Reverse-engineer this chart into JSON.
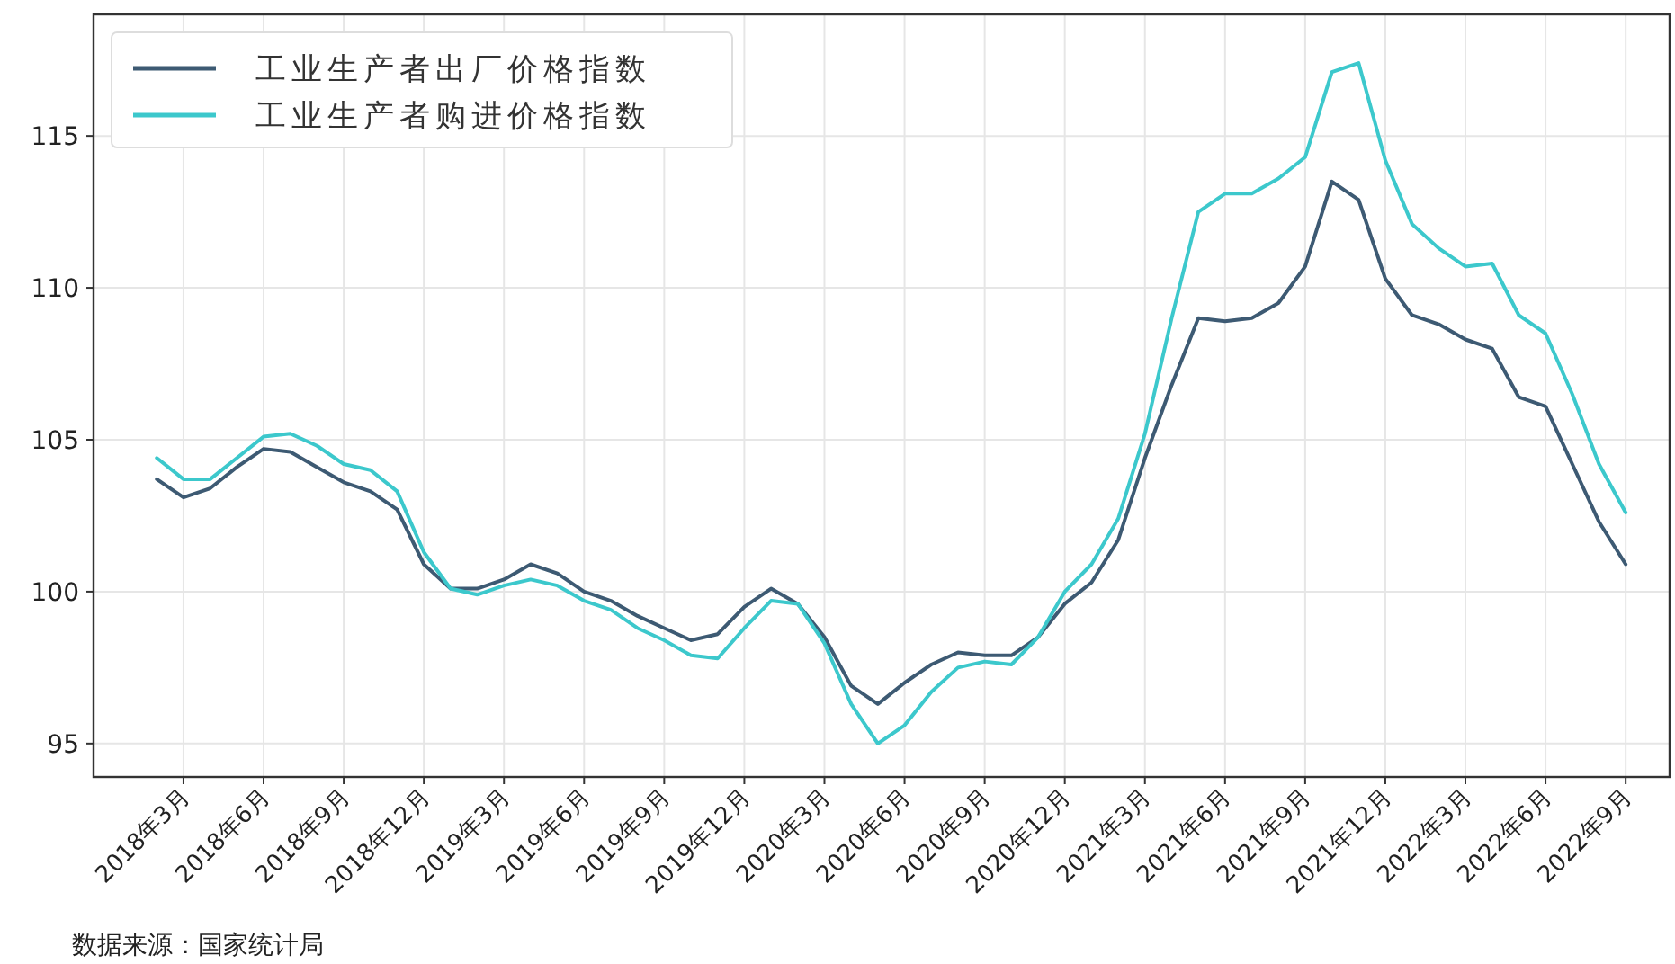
{
  "chart_data": {
    "type": "line",
    "x": [
      "2018-02",
      "2018-03",
      "2018-04",
      "2018-05",
      "2018-06",
      "2018-07",
      "2018-08",
      "2018-09",
      "2018-10",
      "2018-11",
      "2018-12",
      "2019-01",
      "2019-02",
      "2019-03",
      "2019-04",
      "2019-05",
      "2019-06",
      "2019-07",
      "2019-08",
      "2019-09",
      "2019-10",
      "2019-11",
      "2019-12",
      "2020-01",
      "2020-02",
      "2020-03",
      "2020-04",
      "2020-05",
      "2020-06",
      "2020-07",
      "2020-08",
      "2020-09",
      "2020-10",
      "2020-11",
      "2020-12",
      "2021-01",
      "2021-02",
      "2021-03",
      "2021-04",
      "2021-05",
      "2021-06",
      "2021-07",
      "2021-08",
      "2021-09",
      "2021-10",
      "2021-11",
      "2021-12",
      "2022-01",
      "2022-02",
      "2022-03",
      "2022-04",
      "2022-05",
      "2022-06",
      "2022-07",
      "2022-08",
      "2022-09"
    ],
    "series": [
      {
        "name": "工业生产者出厂价格指数",
        "color": "#3d5a73",
        "values": [
          103.7,
          103.1,
          103.4,
          104.1,
          104.7,
          104.6,
          104.1,
          103.6,
          103.3,
          102.7,
          100.9,
          100.1,
          100.1,
          100.4,
          100.9,
          100.6,
          100.0,
          99.7,
          99.2,
          98.8,
          98.4,
          98.6,
          99.5,
          100.1,
          99.6,
          98.5,
          96.9,
          96.3,
          97.0,
          97.6,
          98.0,
          97.9,
          97.9,
          98.5,
          99.6,
          100.3,
          101.7,
          104.4,
          106.8,
          109.0,
          108.9,
          109.0,
          109.5,
          110.7,
          113.5,
          112.9,
          110.3,
          109.1,
          108.8,
          108.3,
          108.0,
          106.4,
          106.1,
          104.2,
          102.3,
          100.9
        ]
      },
      {
        "name": "工业生产者购进价格指数",
        "color": "#3cc8cc",
        "values": [
          104.4,
          103.7,
          103.7,
          104.4,
          105.1,
          105.2,
          104.8,
          104.2,
          104.0,
          103.3,
          101.3,
          100.1,
          99.9,
          100.2,
          100.4,
          100.2,
          99.7,
          99.4,
          98.8,
          98.4,
          97.9,
          97.8,
          98.8,
          99.7,
          99.6,
          98.3,
          96.3,
          95.0,
          95.6,
          96.7,
          97.5,
          97.7,
          97.6,
          98.5,
          100.0,
          100.9,
          102.4,
          105.2,
          109.0,
          112.5,
          113.1,
          113.1,
          113.6,
          114.3,
          117.1,
          117.4,
          114.2,
          112.1,
          111.3,
          110.7,
          110.8,
          109.1,
          108.5,
          106.5,
          104.2,
          102.6
        ]
      }
    ],
    "xlim": [
      "2017-11-20",
      "2022-10-21"
    ],
    "ylim": [
      93.9,
      119
    ],
    "yticks": [
      95,
      100,
      105,
      110,
      115
    ],
    "xticks": [
      {
        "value": "2018-03",
        "label": "2018年3月"
      },
      {
        "value": "2018-06",
        "label": "2018年6月"
      },
      {
        "value": "2018-09",
        "label": "2018年9月"
      },
      {
        "value": "2018-12",
        "label": "2018年12月"
      },
      {
        "value": "2019-03",
        "label": "2019年3月"
      },
      {
        "value": "2019-06",
        "label": "2019年6月"
      },
      {
        "value": "2019-09",
        "label": "2019年9月"
      },
      {
        "value": "2019-12",
        "label": "2019年12月"
      },
      {
        "value": "2020-03",
        "label": "2020年3月"
      },
      {
        "value": "2020-06",
        "label": "2020年6月"
      },
      {
        "value": "2020-09",
        "label": "2020年9月"
      },
      {
        "value": "2020-12",
        "label": "2020年12月"
      },
      {
        "value": "2021-03",
        "label": "2021年3月"
      },
      {
        "value": "2021-06",
        "label": "2021年6月"
      },
      {
        "value": "2021-09",
        "label": "2021年9月"
      },
      {
        "value": "2021-12",
        "label": "2021年12月"
      },
      {
        "value": "2022-03",
        "label": "2022年3月"
      },
      {
        "value": "2022-06",
        "label": "2022年6月"
      },
      {
        "value": "2022-09",
        "label": "2022年9月"
      }
    ],
    "grid": true,
    "legend": "top left",
    "line_style": "solid",
    "annotations": [
      "数据来源：国家统计局"
    ]
  }
}
